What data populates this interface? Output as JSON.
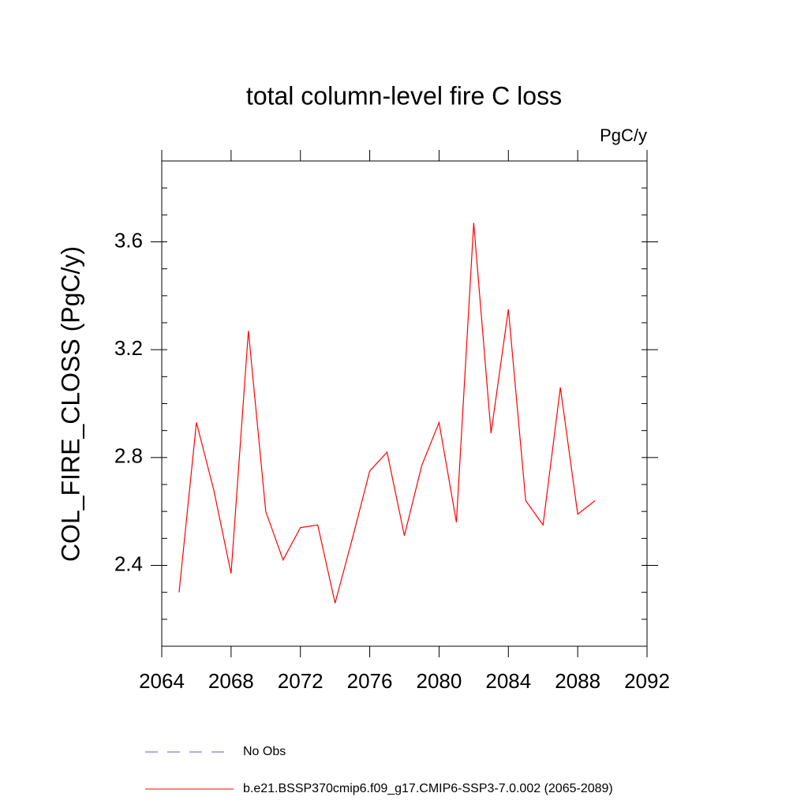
{
  "chart_data": {
    "type": "line",
    "title": "total column-level fire C loss",
    "unit_label": "PgC/y",
    "y_label": "COL_FIRE_CLOSS  (PgC/y)",
    "x": [
      2065,
      2066,
      2067,
      2068,
      2069,
      2070,
      2071,
      2072,
      2073,
      2074,
      2075,
      2076,
      2077,
      2078,
      2079,
      2080,
      2081,
      2082,
      2083,
      2084,
      2085,
      2086,
      2087,
      2088,
      2089
    ],
    "series": [
      {
        "name": "No Obs",
        "color": "#6a5acd",
        "dashed": true,
        "values": [
          null,
          null,
          null,
          null,
          null,
          null,
          null,
          null,
          null,
          null,
          null,
          null,
          null,
          null,
          null,
          null,
          null,
          null,
          null,
          null,
          null,
          null,
          null,
          null,
          null
        ]
      },
      {
        "name": "b.e21.BSSP370cmip6.f09_g17.CMIP6-SSP3-7.0.002 (2065-2089)",
        "color": "#ff0000",
        "dashed": false,
        "values": [
          2.3,
          2.93,
          2.68,
          2.37,
          3.27,
          2.6,
          2.42,
          2.54,
          2.55,
          2.26,
          2.5,
          2.75,
          2.82,
          2.51,
          2.77,
          2.93,
          2.56,
          3.67,
          2.89,
          3.35,
          2.64,
          2.55,
          3.06,
          2.59,
          2.64
        ]
      }
    ],
    "xlim": [
      2064,
      2092
    ],
    "xticks": [
      2064,
      2068,
      2072,
      2076,
      2080,
      2084,
      2088,
      2092
    ],
    "ylim": [
      2.1,
      3.9
    ],
    "yticks": [
      2.4,
      2.8,
      3.2,
      3.6
    ],
    "yminor_step": 0.1
  }
}
